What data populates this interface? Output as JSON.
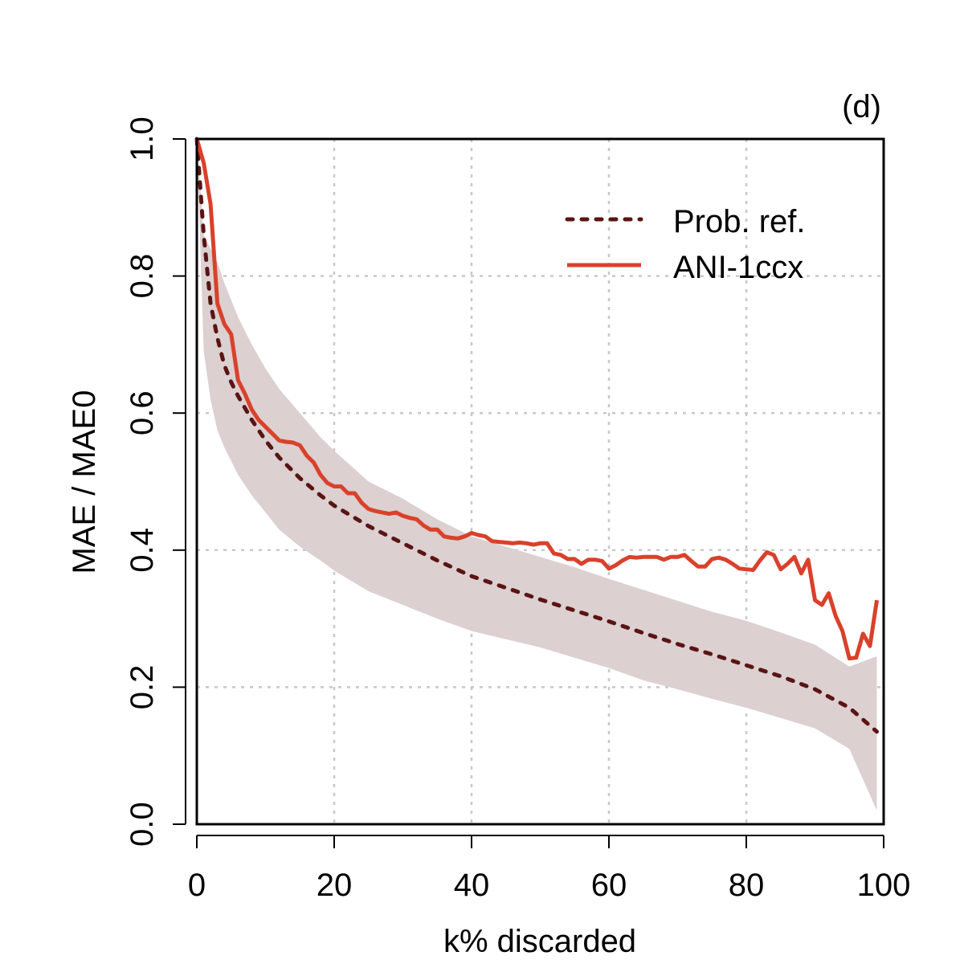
{
  "chart_data": {
    "type": "line",
    "panel_label": "(d)",
    "xlabel": "k% discarded",
    "ylabel": "MAE / MAE0",
    "xlim": [
      0,
      100
    ],
    "ylim": [
      0,
      1
    ],
    "xticks": [
      "0",
      "20",
      "40",
      "60",
      "80",
      "100"
    ],
    "yticks": [
      "0.0",
      "0.2",
      "0.4",
      "0.6",
      "0.8",
      "1.0"
    ],
    "grid": true,
    "legend_position": "top-right",
    "colors": {
      "band": "#dcd0d0",
      "prob_ref": "#5a1414",
      "ani": "#d9412b",
      "grid": "#c8c8c8"
    },
    "series": [
      {
        "name": "Prob. ref.",
        "style": "dotted",
        "x": [
          0,
          1,
          2,
          3,
          4,
          5,
          6,
          8,
          10,
          12,
          15,
          18,
          20,
          25,
          30,
          35,
          40,
          45,
          50,
          55,
          60,
          65,
          70,
          75,
          80,
          85,
          90,
          95,
          99
        ],
        "y": [
          1.0,
          0.86,
          0.76,
          0.71,
          0.67,
          0.645,
          0.625,
          0.59,
          0.56,
          0.535,
          0.505,
          0.48,
          0.465,
          0.435,
          0.41,
          0.385,
          0.362,
          0.345,
          0.328,
          0.312,
          0.296,
          0.279,
          0.263,
          0.248,
          0.232,
          0.216,
          0.197,
          0.17,
          0.135
        ]
      },
      {
        "name": "ANI-1ccx",
        "style": "solid",
        "x": [
          0,
          1,
          2,
          3,
          4,
          5,
          6,
          7,
          8,
          9,
          10,
          11,
          12,
          13,
          14,
          15,
          16,
          17,
          18,
          19,
          20,
          21,
          22,
          23,
          24,
          25,
          26,
          27,
          28,
          29,
          30,
          31,
          32,
          33,
          34,
          35,
          36,
          37,
          38,
          39,
          40,
          41,
          42,
          43,
          44,
          45,
          46,
          47,
          48,
          49,
          50,
          51,
          52,
          53,
          54,
          55,
          56,
          57,
          58,
          59,
          60,
          61,
          62,
          63,
          64,
          65,
          66,
          67,
          68,
          69,
          70,
          71,
          72,
          73,
          74,
          75,
          76,
          77,
          78,
          79,
          80,
          81,
          82,
          83,
          84,
          85,
          86,
          87,
          88,
          89,
          90,
          91,
          92,
          93,
          94,
          95,
          96,
          97,
          98,
          99
        ],
        "y": [
          1.0,
          0.965,
          0.905,
          0.76,
          0.73,
          0.715,
          0.648,
          0.628,
          0.605,
          0.59,
          0.58,
          0.57,
          0.56,
          0.558,
          0.557,
          0.553,
          0.538,
          0.528,
          0.51,
          0.498,
          0.493,
          0.493,
          0.483,
          0.483,
          0.469,
          0.46,
          0.457,
          0.455,
          0.453,
          0.455,
          0.45,
          0.447,
          0.445,
          0.436,
          0.43,
          0.43,
          0.42,
          0.418,
          0.417,
          0.42,
          0.425,
          0.422,
          0.42,
          0.413,
          0.412,
          0.411,
          0.41,
          0.411,
          0.41,
          0.408,
          0.41,
          0.41,
          0.395,
          0.393,
          0.387,
          0.387,
          0.38,
          0.386,
          0.386,
          0.384,
          0.373,
          0.378,
          0.385,
          0.39,
          0.389,
          0.39,
          0.39,
          0.39,
          0.386,
          0.39,
          0.39,
          0.393,
          0.384,
          0.376,
          0.376,
          0.387,
          0.389,
          0.386,
          0.38,
          0.373,
          0.372,
          0.371,
          0.385,
          0.397,
          0.393,
          0.372,
          0.38,
          0.39,
          0.366,
          0.386,
          0.327,
          0.32,
          0.337,
          0.304,
          0.282,
          0.242,
          0.243,
          0.278,
          0.26,
          0.327
        ]
      }
    ],
    "band": {
      "name": "Prob. ref. interval",
      "x": [
        0,
        1,
        2,
        3,
        4,
        5,
        6,
        8,
        10,
        12,
        15,
        18,
        20,
        25,
        30,
        35,
        40,
        45,
        50,
        55,
        60,
        65,
        70,
        75,
        80,
        85,
        90,
        95,
        99
      ],
      "upper": [
        1.0,
        0.86,
        0.84,
        0.82,
        0.79,
        0.765,
        0.74,
        0.7,
        0.665,
        0.635,
        0.6,
        0.565,
        0.545,
        0.5,
        0.475,
        0.445,
        0.42,
        0.405,
        0.39,
        0.375,
        0.358,
        0.342,
        0.326,
        0.31,
        0.297,
        0.28,
        0.262,
        0.23,
        0.245
      ],
      "lower": [
        1.0,
        0.69,
        0.62,
        0.575,
        0.55,
        0.53,
        0.51,
        0.48,
        0.455,
        0.43,
        0.405,
        0.385,
        0.37,
        0.34,
        0.32,
        0.3,
        0.282,
        0.27,
        0.258,
        0.243,
        0.228,
        0.21,
        0.197,
        0.183,
        0.17,
        0.155,
        0.14,
        0.11,
        0.02
      ]
    }
  }
}
